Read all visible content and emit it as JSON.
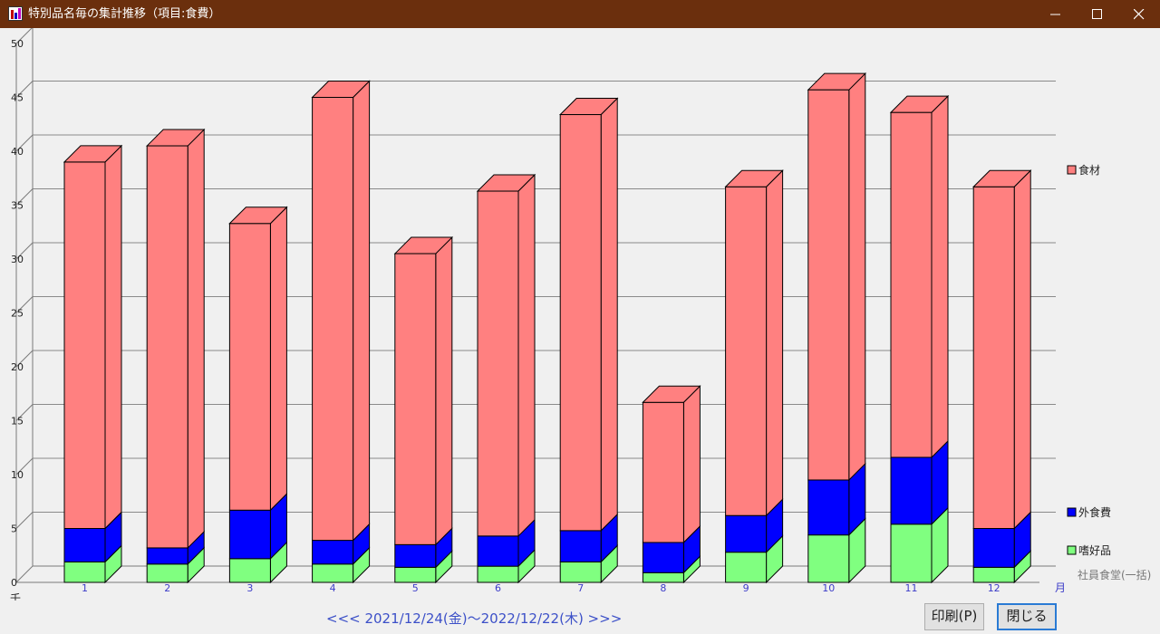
{
  "window": {
    "title": "特別品名毎の集計推移（項目:食費）",
    "icon": "bar-chart-app-icon",
    "titlebar_color": "#6b2f0d",
    "controls": [
      "minimize-icon",
      "maximize-icon",
      "close-icon"
    ]
  },
  "chart_data": {
    "type": "bar",
    "stacked": true,
    "three_d": true,
    "categories": [
      "1",
      "2",
      "3",
      "4",
      "5",
      "6",
      "7",
      "8",
      "9",
      "10",
      "11",
      "12"
    ],
    "x_unit": "月",
    "y_unit": "千",
    "y_ticks": [
      "0",
      "5",
      "10",
      "15",
      "20",
      "25",
      "30",
      "35",
      "40",
      "45",
      "50"
    ],
    "ylim": [
      0,
      50
    ],
    "grid": true,
    "legend_placement": "right",
    "series": [
      {
        "name": "嗜好品",
        "color": "#80ff80",
        "values": [
          1.9,
          1.7,
          2.2,
          1.7,
          1.4,
          1.5,
          1.9,
          0.9,
          2.8,
          4.4,
          5.4,
          1.4
        ]
      },
      {
        "name": "外食費",
        "color": "#0000ff",
        "values": [
          3.1,
          1.5,
          4.5,
          2.2,
          2.1,
          2.8,
          2.9,
          2.8,
          3.4,
          5.1,
          6.2,
          3.6
        ]
      },
      {
        "name": "食材",
        "color": "#ff8080",
        "values": [
          34.0,
          37.3,
          26.6,
          41.1,
          27.0,
          32.0,
          38.6,
          13.0,
          30.5,
          36.2,
          32.0,
          31.7
        ]
      },
      {
        "name": "社員食堂(一括)",
        "color": "#a0a0a0",
        "values": [
          0,
          0,
          0,
          0,
          0,
          0,
          0,
          0,
          0,
          0,
          0,
          0
        ]
      }
    ]
  },
  "footer": {
    "date_range": "<<< 2021/12/24(金)～2022/12/22(木) >>>",
    "print_button": "印刷(P)",
    "close_button": "閉じる"
  }
}
